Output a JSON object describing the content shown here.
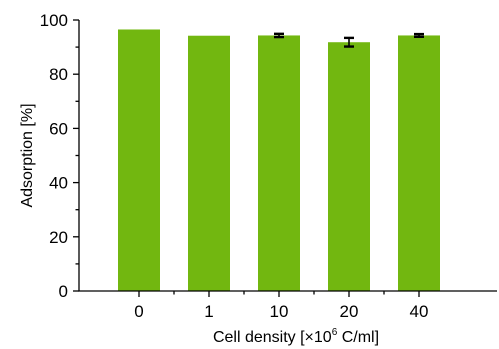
{
  "chart_data": {
    "type": "bar",
    "categories": [
      "0",
      "1",
      "10",
      "20",
      "40"
    ],
    "values": [
      96.5,
      94.2,
      94.3,
      91.8,
      94.3
    ],
    "errors": [
      0,
      0,
      0.6,
      1.6,
      0.5
    ],
    "ylim": [
      0,
      100
    ],
    "yticks": [
      0,
      20,
      40,
      60,
      80,
      100
    ],
    "ylabel": "Adsorption [%]",
    "xlabel": {
      "main": "Cell density [×10",
      "sup": "6",
      "tail": " C/ml]"
    },
    "bar_color": "#72b710",
    "grid": false,
    "legend": "none"
  }
}
